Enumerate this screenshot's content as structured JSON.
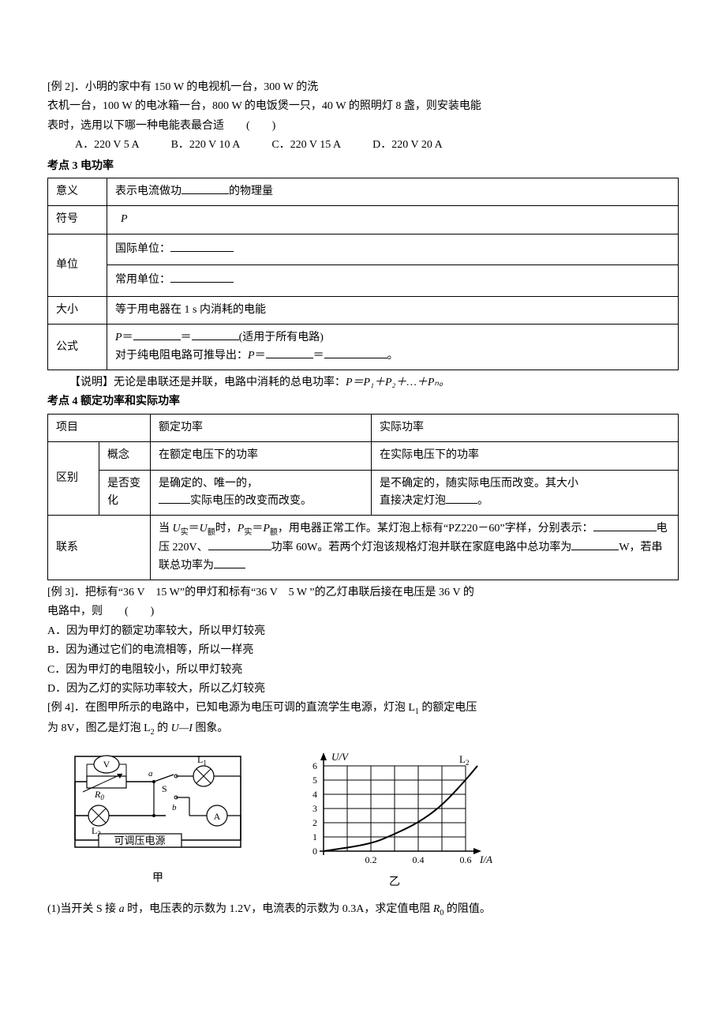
{
  "example2": {
    "line1": "[例 2]．小明的家中有 150 W 的电视机一台，300 W 的洗",
    "line2": "衣机一台，100 W 的电冰箱一台，800 W 的电饭煲一只，40 W 的照明灯 8 盏，则安装电能",
    "line3": "表时，选用以下哪一种电能表最合适　　(　　)",
    "options": {
      "a": "A．220 V 5 A",
      "b": "B．220 V 10 A",
      "c": "C．220 V 15 A",
      "d": "D．220 V 20 A"
    }
  },
  "kp3": {
    "title": "考点 3  电功率",
    "rows": {
      "r1c1": "意义",
      "r1c2_pre": "表示电流做功",
      "r1c2_post": "的物理量",
      "r2c1": "符号",
      "r2c2": "P",
      "r3c1": "单位",
      "r3c2a": "国际单位：",
      "r3c2b": "常用单位：",
      "r4c1": "大小",
      "r4c2": "等于用电器在 1 s 内消耗的电能",
      "r5c1": "公式",
      "r5c2_p": "P",
      "r5c2_eq1": "＝",
      "r5c2_eq2": "＝",
      "r5c2_post1": "(适用于所有电路)",
      "r5c2_line2_pre": "对于纯电阻电路可推导出：",
      "r5c2_p2": "P",
      "r5c2_dot": "。"
    },
    "note_pre": "【说明】无论是串联还是并联，电路中消耗的总电功率：",
    "note_formula": "P＝P₁＋P₂＋…＋Pₙ。"
  },
  "kp4": {
    "title": "考点 4  额定功率和实际功率",
    "header": {
      "c1": "项目",
      "c2": "额定功率",
      "c3": "实际功率"
    },
    "rows": {
      "r1c1": "区别",
      "r1c2a": "概念",
      "r1c3a": "在额定电压下的功率",
      "r1c4a": "在实际电压下的功率",
      "r1c2b": "是否变化",
      "r1c3b_line1": "是确定的、唯一的，",
      "r1c3b_line2_post": "实际电压的改变而改变。",
      "r1c4b_line1": "是不确定的，随实际电压而改变。其大小",
      "r1c4b_line2_pre": "直接决定灯泡",
      "r1c4b_line2_post": "。",
      "r2c1": "联系",
      "r2c2_part1": "当 ",
      "r2c2_u": "U",
      "r2c2_shi": "实",
      "r2c2_eq": "＝",
      "r2c2_e": "额",
      "r2c2_part2": "时，",
      "r2c2_p": "P",
      "r2c2_part3": "，用电器正常工作。某灯泡上标有“PZ220－60”字样，分别表示：",
      "r2c2_part4": "电压 220V、",
      "r2c2_part5": "功率 60W。若两个灯泡该规格灯泡并联在家庭电路中总功率为",
      "r2c2_part6": "W，若串联总功率为"
    }
  },
  "example3": {
    "line1": "[例 3]．把标有“36 V　15 W”的甲灯和标有“36 V　5 W ”的乙灯串联后接在电压是 36 V 的",
    "line2": "电路中，则　　(　　)",
    "a": "A．因为甲灯的额定功率较大，所以甲灯较亮",
    "b": "B．因为通过它们的电流相等，所以一样亮",
    "c": "C．因为甲灯的电阻较小，所以甲灯较亮",
    "d": "D．因为乙灯的实际功率较大，所以乙灯较亮"
  },
  "example4": {
    "line1_pre": "[例 4]．在图甲所示的电路中，已知电源为电压可调的直流学生电源，灯泡 L",
    "line1_sub": "1",
    "line1_post": " 的额定电压",
    "line2_pre": "为 8V，图乙是灯泡 L",
    "line2_sub": "2",
    "line2_mid": " 的 ",
    "line2_ui": "U—I",
    "line2_post": " 图象。",
    "q1_pre": "(1)当开关 S 接 ",
    "q1_a": "a",
    "q1_mid": " 时，电压表的示数为 1.2V，电流表的示数为 0.3A，求定值电阻 ",
    "q1_r": "R",
    "q1_sub0": "0",
    "q1_post": " 的阻值。",
    "circuit": {
      "V": "V",
      "R0": "R",
      "R0_sub": "0",
      "a": "a",
      "S": "S",
      "L1": "L",
      "L1_sub": "1",
      "b": "b",
      "L2": "L",
      "L2_sub": "2",
      "A": "A",
      "source": "可调压电源",
      "caption": "甲"
    },
    "graph": {
      "type": "line",
      "ylabel": "U/V",
      "xlabel": "I/A",
      "curve_label": "L",
      "curve_label_sub": "2",
      "yticks": [
        "0",
        "1",
        "2",
        "3",
        "4",
        "5",
        "6"
      ],
      "xticks": [
        "0.2",
        "0.4",
        "0.6"
      ],
      "ylim": [
        0,
        6
      ],
      "xlim": [
        0,
        0.7
      ],
      "points": [
        [
          0,
          0
        ],
        [
          0.2,
          0.5
        ],
        [
          0.3,
          1.2
        ],
        [
          0.4,
          2.0
        ],
        [
          0.5,
          3.2
        ],
        [
          0.6,
          5.0
        ],
        [
          0.65,
          6.0
        ]
      ],
      "grid_color": "#000",
      "curve_color": "#000",
      "caption": "乙"
    }
  }
}
